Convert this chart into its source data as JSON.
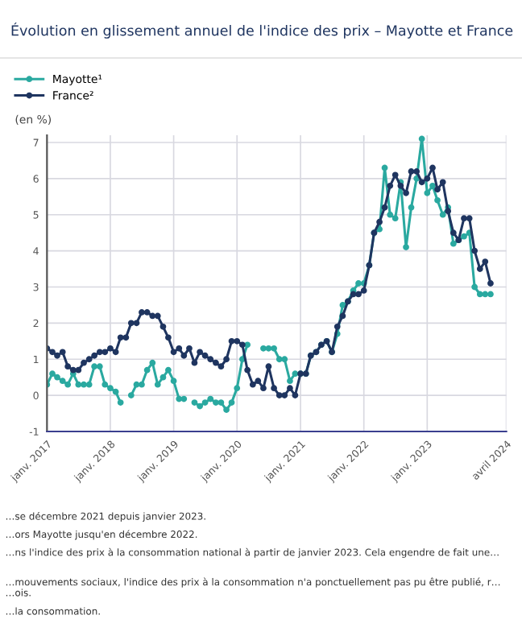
{
  "chart_data": {
    "type": "line",
    "title": "Évolution en glissement annuel de l'indice des prix – Mayotte et France",
    "ylabel": "(en %)",
    "x": [
      "2017-01",
      "2017-02",
      "2017-03",
      "2017-04",
      "2017-05",
      "2017-06",
      "2017-07",
      "2017-08",
      "2017-09",
      "2017-10",
      "2017-11",
      "2017-12",
      "2018-01",
      "2018-02",
      "2018-03",
      "2018-04",
      "2018-05",
      "2018-06",
      "2018-07",
      "2018-08",
      "2018-09",
      "2018-10",
      "2018-11",
      "2018-12",
      "2019-01",
      "2019-02",
      "2019-03",
      "2019-04",
      "2019-05",
      "2019-06",
      "2019-07",
      "2019-08",
      "2019-09",
      "2019-10",
      "2019-11",
      "2019-12",
      "2020-01",
      "2020-02",
      "2020-03",
      "2020-04",
      "2020-05",
      "2020-06",
      "2020-07",
      "2020-08",
      "2020-09",
      "2020-10",
      "2020-11",
      "2020-12",
      "2021-01",
      "2021-02",
      "2021-03",
      "2021-04",
      "2021-05",
      "2021-06",
      "2021-07",
      "2021-08",
      "2021-09",
      "2021-10",
      "2021-11",
      "2021-12",
      "2022-01",
      "2022-02",
      "2022-03",
      "2022-04",
      "2022-05",
      "2022-06",
      "2022-07",
      "2022-08",
      "2022-09",
      "2022-10",
      "2022-11",
      "2022-12",
      "2023-01",
      "2023-02",
      "2023-03",
      "2023-04",
      "2023-05",
      "2023-06",
      "2023-07",
      "2023-08",
      "2023-09",
      "2023-10",
      "2023-11",
      "2023-12",
      "2024-01"
    ],
    "series": [
      {
        "name": "Mayotte¹",
        "color": "#2aa9a0",
        "values": [
          0.3,
          0.6,
          0.5,
          0.4,
          0.3,
          0.6,
          0.3,
          0.3,
          0.3,
          0.8,
          0.8,
          0.3,
          0.2,
          0.1,
          -0.2,
          null,
          0.0,
          0.3,
          0.3,
          0.7,
          0.9,
          0.3,
          0.5,
          0.7,
          0.4,
          -0.1,
          -0.1,
          null,
          -0.2,
          -0.3,
          -0.2,
          -0.1,
          -0.2,
          -0.2,
          -0.4,
          -0.2,
          0.2,
          1.0,
          1.4,
          null,
          null,
          1.3,
          1.3,
          1.3,
          1.0,
          1.0,
          0.4,
          0.6,
          0.6,
          0.6,
          1.1,
          1.2,
          1.4,
          1.5,
          1.2,
          1.7,
          2.5,
          2.6,
          2.9,
          3.1,
          3.1,
          3.6,
          4.5,
          4.6,
          6.3,
          5.0,
          4.9,
          5.9,
          4.1,
          5.2,
          6.0,
          7.1,
          5.6,
          5.8,
          5.4,
          5.0,
          5.2,
          4.2,
          4.3,
          4.4,
          4.5,
          3.0,
          2.8,
          2.8,
          2.8
        ]
      },
      {
        "name": "France²",
        "color": "#1f3560",
        "values": [
          1.3,
          1.2,
          1.1,
          1.2,
          0.8,
          0.7,
          0.7,
          0.9,
          1.0,
          1.1,
          1.2,
          1.2,
          1.3,
          1.2,
          1.6,
          1.6,
          2.0,
          2.0,
          2.3,
          2.3,
          2.2,
          2.2,
          1.9,
          1.6,
          1.2,
          1.3,
          1.1,
          1.3,
          0.9,
          1.2,
          1.1,
          1.0,
          0.9,
          0.8,
          1.0,
          1.5,
          1.5,
          1.4,
          0.7,
          0.3,
          0.4,
          0.2,
          0.8,
          0.2,
          0.0,
          0.0,
          0.2,
          0.0,
          0.6,
          0.6,
          1.1,
          1.2,
          1.4,
          1.5,
          1.2,
          1.9,
          2.2,
          2.6,
          2.8,
          2.8,
          2.9,
          3.6,
          4.5,
          4.8,
          5.2,
          5.8,
          6.1,
          5.8,
          5.6,
          6.2,
          6.2,
          5.9,
          6.0,
          6.3,
          5.7,
          5.9,
          5.1,
          4.5,
          4.3,
          4.9,
          4.9,
          4.0,
          3.5,
          3.7,
          3.1
        ]
      }
    ],
    "xlim": [
      "2017-01",
      "2024-04"
    ],
    "xticks": [
      {
        "value": "2017-01",
        "label": "janv. 2017"
      },
      {
        "value": "2018-01",
        "label": "janv. 2018"
      },
      {
        "value": "2019-01",
        "label": "janv. 2019"
      },
      {
        "value": "2020-01",
        "label": "janv. 2020"
      },
      {
        "value": "2021-01",
        "label": "janv. 2021"
      },
      {
        "value": "2022-01",
        "label": "janv. 2022"
      },
      {
        "value": "2023-01",
        "label": "janv. 2023"
      },
      {
        "value": "2024-04",
        "label": "avril 2024"
      }
    ],
    "ylim": [
      -1,
      7.2
    ],
    "yticks": [
      -1,
      0,
      1,
      2,
      3,
      4,
      5,
      6,
      7
    ],
    "grid": true,
    "legend": "top left",
    "marker": "circle",
    "line_style": "solid",
    "annotations": [
      "…se décembre 2021 depuis janvier 2023.",
      "…ors Mayotte jusqu'en décembre 2022.",
      "…ns l'indice des prix à la consommation national à partir de janvier 2023. Cela engendre de fait une…",
      "…mouvements sociaux, l'indice des prix à la consommation n'a ponctuellement pas pu être publié, r… …ois.",
      "…la consommation."
    ]
  }
}
